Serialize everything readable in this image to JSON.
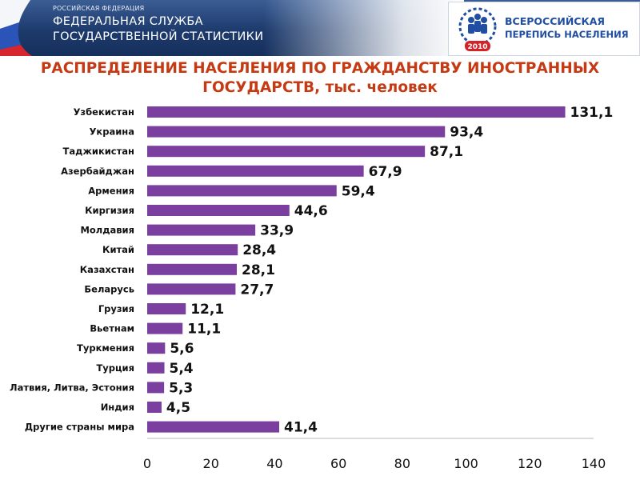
{
  "header": {
    "org_small": "РОССИЙСКАЯ ФЕДЕРАЦИЯ",
    "org_line1": "ФЕДЕРАЛЬНАЯ СЛУЖБА",
    "org_line2": "ГОСУДАРСТВЕННОЙ СТАТИСТИКИ",
    "census_line1": "ВСЕРОССИЙСКАЯ",
    "census_line2": "ПЕРЕПИСЬ НАСЕЛЕНИЯ",
    "census_year": "2010"
  },
  "colors": {
    "bar": "#7b3fa0",
    "title": "#c43a13",
    "banner": "#1d3a6c",
    "census_text": "#1f4ea3",
    "census_year_badge": "#d2232a"
  },
  "chart_data": {
    "type": "bar",
    "orientation": "horizontal",
    "title": "РАСПРЕДЕЛЕНИЕ НАСЕЛЕНИЯ ПО ГРАЖДАНСТВУ ИНОСТРАННЫХ ГОСУДАРСТВ, тыс. человек",
    "title_lines": [
      "РАСПРЕДЕЛЕНИЕ НАСЕЛЕНИЯ ПО ГРАЖДАНСТВУ ИНОСТРАННЫХ",
      "ГОСУДАРСТВ, тыс. человек"
    ],
    "categories": [
      "Узбекистан",
      "Украина",
      "Таджикистан",
      "Азербайджан",
      "Армения",
      "Киргизия",
      "Молдавия",
      "Китай",
      "Казахстан",
      "Беларусь",
      "Грузия",
      "Вьетнам",
      "Туркмения",
      "Турция",
      "Латвия, Литва, Эстония",
      "Индия",
      "Другие страны мира"
    ],
    "values": [
      131.1,
      93.4,
      87.1,
      67.9,
      59.4,
      44.6,
      33.9,
      28.4,
      28.1,
      27.7,
      12.1,
      11.1,
      5.6,
      5.4,
      5.3,
      4.5,
      41.4
    ],
    "value_labels": [
      "131,1",
      "93,4",
      "87,1",
      "67,9",
      "59,4",
      "44,6",
      "33,9",
      "28,4",
      "28,1",
      "27,7",
      "12,1",
      "11,1",
      "5,6",
      "5,4",
      "5,3",
      "4,5",
      "41,4"
    ],
    "xlim": [
      0,
      140
    ],
    "xticks": [
      0,
      20,
      40,
      60,
      80,
      100,
      120,
      140
    ],
    "xlabel": "",
    "ylabel": "",
    "grid": false,
    "legend": "none"
  }
}
